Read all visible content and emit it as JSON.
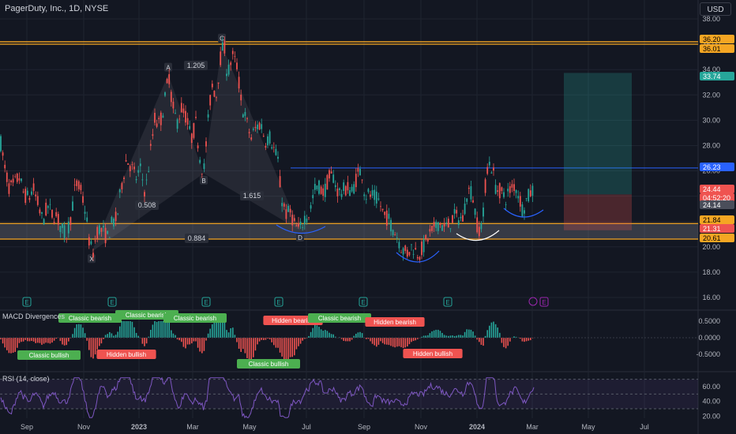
{
  "header": {
    "title": "PagerDuty, Inc., 1D, NYSE",
    "currency": "USD"
  },
  "colors": {
    "bg": "#131722",
    "up": "#26a69a",
    "down": "#ef5350",
    "orange": "#f5a623",
    "blue": "#2962ff",
    "grid": "#1f2430",
    "text": "#b2b5be",
    "macd_line": "#2196f3",
    "rsi": "#7e57c2"
  },
  "chart_data": [
    {
      "type": "candlestick",
      "title": "PagerDuty, Inc., 1D, NYSE",
      "x_ticks": [
        "Sep",
        "Nov",
        "2023",
        "Mar",
        "May",
        "Jul",
        "Sep",
        "Nov",
        "2024",
        "Mar",
        "May",
        "Jul"
      ],
      "y_ticks": [
        38.0,
        36.0,
        34.0,
        32.0,
        30.0,
        28.0,
        26.0,
        24.0,
        22.0,
        20.0,
        18.0,
        16.0
      ],
      "ylim": [
        15.0,
        39.5
      ],
      "right_labels": [
        {
          "value": 36.2,
          "text": "36.20",
          "kind": "orange"
        },
        {
          "value": 36.01,
          "text": "36.01",
          "kind": "orange"
        },
        {
          "value": 33.74,
          "text": "33.74",
          "kind": "green"
        },
        {
          "value": 26.23,
          "text": "26.23",
          "kind": "blue"
        },
        {
          "value": 24.44,
          "text": "24.44",
          "kind": "red"
        },
        {
          "value": 24.44,
          "text": "04:52:20",
          "kind": "red2"
        },
        {
          "value": 24.14,
          "text": "24.14",
          "kind": "gray"
        },
        {
          "value": 21.84,
          "text": "21.84",
          "kind": "orange"
        },
        {
          "value": 21.31,
          "text": "21.31",
          "kind": "red"
        },
        {
          "value": 20.61,
          "text": "20.61",
          "kind": "orange"
        }
      ],
      "harmonic": {
        "points": [
          {
            "label": "X",
            "value": 19.6
          },
          {
            "label": "A",
            "value": 33.6
          },
          {
            "label": "B",
            "value": 25.8
          },
          {
            "label": "C",
            "value": 35.9
          },
          {
            "label": "D",
            "value": 21.3
          }
        ],
        "ratios": [
          "0.508",
          "1.205",
          "1.615",
          "0.884"
        ]
      },
      "levels": {
        "resistance_top": [
          36.2,
          36.01
        ],
        "support_zone": [
          20.61,
          21.84
        ],
        "breakout_line": 26.23
      },
      "position": {
        "target": 33.74,
        "entry": 24.14,
        "stop": 21.31
      },
      "series": [
        {
          "name": "PagerDuty, Inc.",
          "path": [
            [
              0,
              28.6
            ],
            [
              6,
              26.2
            ],
            [
              12,
              24.6
            ],
            [
              18,
              24.9
            ],
            [
              24,
              25.6
            ],
            [
              30,
              24.2
            ],
            [
              36,
              23.8
            ],
            [
              42,
              24.6
            ],
            [
              48,
              23.4
            ],
            [
              54,
              22.0
            ],
            [
              60,
              23.2
            ],
            [
              66,
              22.6
            ],
            [
              72,
              22.4
            ],
            [
              78,
              21.4
            ],
            [
              84,
              20.9
            ],
            [
              90,
              22.5
            ],
            [
              96,
              25.0
            ],
            [
              102,
              24.5
            ],
            [
              108,
              22.9
            ],
            [
              114,
              20.0
            ],
            [
              118,
              19.6
            ],
            [
              124,
              21.5
            ],
            [
              130,
              21.2
            ],
            [
              136,
              20.7
            ],
            [
              142,
              21.9
            ],
            [
              148,
              22.2
            ],
            [
              154,
              24.9
            ],
            [
              160,
              26.9
            ],
            [
              166,
              26.4
            ],
            [
              172,
              25.4
            ],
            [
              178,
              26.1
            ],
            [
              184,
              24.2
            ],
            [
              190,
              27.2
            ],
            [
              196,
              30.1
            ],
            [
              202,
              29.6
            ],
            [
              208,
              31.3
            ],
            [
              214,
              33.6
            ],
            [
              218,
              31.2
            ],
            [
              224,
              29.8
            ],
            [
              230,
              31.0
            ],
            [
              236,
              30.2
            ],
            [
              242,
              28.5
            ],
            [
              248,
              29.7
            ],
            [
              254,
              26.7
            ],
            [
              258,
              25.9
            ],
            [
              262,
              28.8
            ],
            [
              268,
              32.8
            ],
            [
              274,
              32.0
            ],
            [
              280,
              35.4
            ],
            [
              284,
              35.9
            ],
            [
              288,
              33.5
            ],
            [
              294,
              35.1
            ],
            [
              300,
              34.3
            ],
            [
              306,
              31.2
            ],
            [
              312,
              29.9
            ],
            [
              318,
              28.6
            ],
            [
              324,
              29.4
            ],
            [
              330,
              29.8
            ],
            [
              336,
              28.4
            ],
            [
              342,
              28.7
            ],
            [
              348,
              27.5
            ],
            [
              352,
              26.8
            ],
            [
              356,
              24.0
            ],
            [
              362,
              22.6
            ],
            [
              368,
              22.7
            ],
            [
              374,
              21.6
            ],
            [
              380,
              21.3
            ],
            [
              386,
              22.4
            ],
            [
              392,
              22.6
            ],
            [
              398,
              24.5
            ],
            [
              404,
              24.8
            ],
            [
              410,
              24.2
            ],
            [
              416,
              25.4
            ],
            [
              422,
              25.6
            ],
            [
              428,
              24.3
            ],
            [
              434,
              24.4
            ],
            [
              440,
              24.7
            ],
            [
              446,
              24.3
            ],
            [
              452,
              25.6
            ],
            [
              458,
              26.1
            ],
            [
              462,
              24.1
            ],
            [
              468,
              24.1
            ],
            [
              474,
              23.9
            ],
            [
              480,
              23.6
            ],
            [
              486,
              22.5
            ],
            [
              492,
              22.2
            ],
            [
              498,
              21.4
            ],
            [
              504,
              20.7
            ],
            [
              510,
              19.7
            ],
            [
              516,
              19.5
            ],
            [
              522,
              20.1
            ],
            [
              528,
              19.5
            ],
            [
              532,
              19.6
            ],
            [
              538,
              20.2
            ],
            [
              544,
              21.0
            ],
            [
              550,
              21.4
            ],
            [
              556,
              22.0
            ],
            [
              562,
              21.5
            ],
            [
              568,
              21.7
            ],
            [
              574,
              22.4
            ],
            [
              580,
              22.3
            ],
            [
              586,
              22.2
            ],
            [
              592,
              24.5
            ],
            [
              598,
              24.3
            ],
            [
              604,
              21.8
            ],
            [
              608,
              21.3
            ],
            [
              612,
              22.5
            ],
            [
              616,
              26.1
            ],
            [
              620,
              26.6
            ],
            [
              624,
              26.1
            ],
            [
              628,
              24.6
            ],
            [
              634,
              24.4
            ],
            [
              640,
              23.8
            ],
            [
              646,
              24.5
            ],
            [
              652,
              24.9
            ],
            [
              658,
              23.9
            ],
            [
              662,
              22.9
            ],
            [
              666,
              23.6
            ],
            [
              672,
              24.3
            ],
            [
              676,
              24.44
            ]
          ]
        }
      ]
    },
    {
      "type": "bar",
      "title": "MACD Divergences",
      "y_ticks": [
        "0.5000",
        "0.0000",
        "-0.5000"
      ],
      "ylim": [
        -0.9,
        0.9
      ],
      "annotations": [
        {
          "text": "Classic bearish",
          "kind": "bearish"
        },
        {
          "text": "Classic bearish",
          "kind": "bearish"
        },
        {
          "text": "Classic bearish",
          "kind": "bearish"
        },
        {
          "text": "Classic bullish",
          "kind": "bullish"
        },
        {
          "text": "Hidden bullish",
          "kind": "hbull"
        },
        {
          "text": "Classic bullish",
          "kind": "bullish"
        },
        {
          "text": "Hidden bearish",
          "kind": "hbear"
        },
        {
          "text": "Classic bearish",
          "kind": "bearish"
        },
        {
          "text": "Hidden bearish",
          "kind": "hbear"
        },
        {
          "text": "Hidden bullish",
          "kind": "hbull"
        }
      ]
    },
    {
      "type": "line",
      "title": "RSI (14, close)",
      "y_ticks": [
        "60.00",
        "40.00",
        "20.00"
      ],
      "ylim": [
        15,
        75
      ],
      "bands": [
        70,
        50,
        30
      ]
    }
  ]
}
